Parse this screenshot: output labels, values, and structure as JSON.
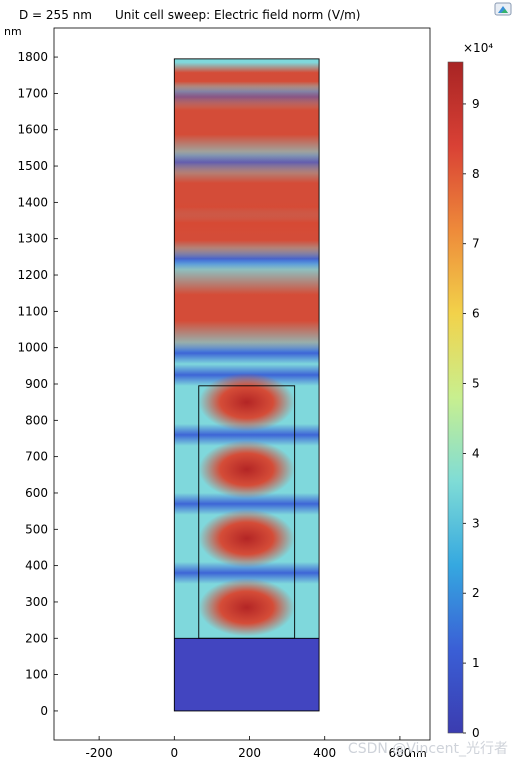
{
  "header": {
    "param_label": "D = 255 nm",
    "title": "Unit cell sweep: Electric field norm (V/m)"
  },
  "icons": {
    "corner": "zoom-extents-icon"
  },
  "watermark": "CSDN @Vincent_光行者",
  "chart_data": {
    "type": "heatmap",
    "title": "Unit cell sweep: Electric field norm (V/m)",
    "xlabel": "nm",
    "ylabel": "nm",
    "xlim": [
      -320,
      680
    ],
    "ylim": [
      -80,
      1880
    ],
    "x_ticks": [
      -200,
      0,
      200,
      400,
      600
    ],
    "y_ticks": [
      0,
      100,
      200,
      300,
      400,
      500,
      600,
      700,
      800,
      900,
      1000,
      1100,
      1200,
      1300,
      1400,
      1500,
      1600,
      1700,
      1800
    ],
    "domain": {
      "x": [
        0,
        385
      ],
      "y": [
        0,
        1795
      ]
    },
    "substrate": {
      "x": [
        0,
        385
      ],
      "y": [
        0,
        200
      ]
    },
    "pillar": {
      "x": [
        65,
        320
      ],
      "y": [
        200,
        895
      ]
    },
    "colorbar": {
      "multiplier": "×10⁴",
      "ticks": [
        0,
        1,
        2,
        3,
        4,
        5,
        6,
        7,
        8,
        9
      ],
      "range": [
        0,
        9.6
      ],
      "colormap": "rainbow",
      "stops": [
        "#3b3cb0",
        "#3a5fd6",
        "#35a8e0",
        "#7fdcd6",
        "#c8ef8f",
        "#f2d24a",
        "#ee8a3a",
        "#d94135",
        "#a82424"
      ]
    },
    "field_bands": [
      {
        "y_center": 1745,
        "y_half": 20,
        "value": 2.5,
        "span": "full"
      },
      {
        "y_center": 1620,
        "y_half": 55,
        "value": 9.0,
        "span": "full"
      },
      {
        "y_center": 1420,
        "y_half": 55,
        "value": 9.2,
        "span": "full"
      },
      {
        "y_center": 1320,
        "y_half": 40,
        "value": 8.4,
        "span": "full"
      },
      {
        "y_center": 1110,
        "y_half": 60,
        "value": 8.8,
        "span": "full"
      },
      {
        "y_center": 850,
        "y_half": 38,
        "value": 9.5,
        "span": "pillar"
      },
      {
        "y_center": 665,
        "y_half": 38,
        "value": 9.5,
        "span": "pillar"
      },
      {
        "y_center": 475,
        "y_half": 38,
        "value": 9.5,
        "span": "pillar"
      },
      {
        "y_center": 285,
        "y_half": 38,
        "value": 9.5,
        "span": "pillar"
      }
    ]
  }
}
